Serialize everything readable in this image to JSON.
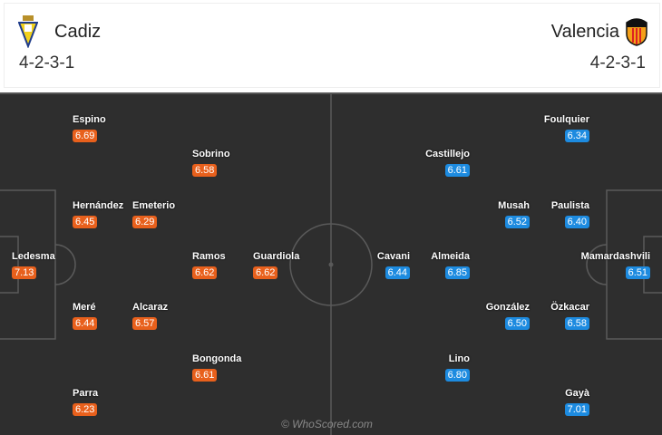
{
  "home": {
    "name": "Cadiz",
    "formation": "4-2-3-1",
    "color": "#e8601c",
    "players": [
      {
        "name": "Espino",
        "rating": "6.69"
      },
      {
        "name": "Sobrino",
        "rating": "6.58"
      },
      {
        "name": "Hernández",
        "rating": "6.45"
      },
      {
        "name": "Emeterio",
        "rating": "6.29"
      },
      {
        "name": "Ledesma",
        "rating": "7.13"
      },
      {
        "name": "Ramos",
        "rating": "6.62"
      },
      {
        "name": "Guardiola",
        "rating": "6.62"
      },
      {
        "name": "Meré",
        "rating": "6.44"
      },
      {
        "name": "Alcaraz",
        "rating": "6.57"
      },
      {
        "name": "Bongonda",
        "rating": "6.61"
      },
      {
        "name": "Parra",
        "rating": "6.23"
      }
    ]
  },
  "away": {
    "name": "Valencia",
    "formation": "4-2-3-1",
    "color": "#1d8be0",
    "players": [
      {
        "name": "Foulquier",
        "rating": "6.34"
      },
      {
        "name": "Castillejo",
        "rating": "6.61"
      },
      {
        "name": "Musah",
        "rating": "6.52"
      },
      {
        "name": "Paulista",
        "rating": "6.40"
      },
      {
        "name": "Mamardashvili",
        "rating": "6.51"
      },
      {
        "name": "Cavani",
        "rating": "6.44"
      },
      {
        "name": "Almeida",
        "rating": "6.85"
      },
      {
        "name": "González",
        "rating": "6.50"
      },
      {
        "name": "Özkacar",
        "rating": "6.58"
      },
      {
        "name": "Lino",
        "rating": "6.80"
      },
      {
        "name": "Gayà",
        "rating": "7.01"
      }
    ]
  },
  "credit": "© WhoScored.com"
}
